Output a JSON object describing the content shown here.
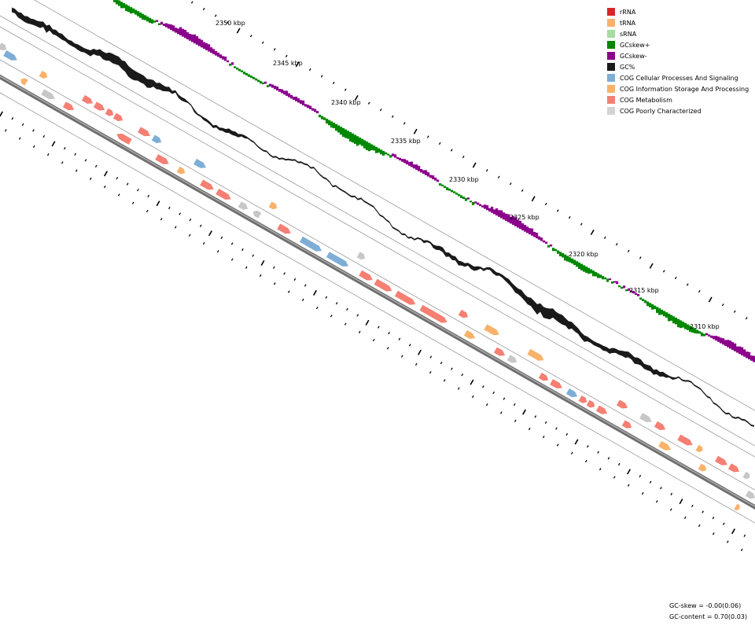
{
  "kbp_labels": [
    "2350 kbp",
    "2345 kbp",
    "2340 kbp",
    "2335 kbp",
    "2330 kbp",
    "2325 kbp",
    "2320 kbp",
    "2315 kbp",
    "2310 kbp"
  ],
  "legend": [
    {
      "label": "rRNA",
      "color": "#d62728"
    },
    {
      "label": "tRNA",
      "color": "#f8b26a"
    },
    {
      "label": "sRNA",
      "color": "#a7dba0"
    },
    {
      "label": "GCskew+",
      "color": "#008800"
    },
    {
      "label": "GCskew-",
      "color": "#8b008b"
    },
    {
      "label": "GC%",
      "color": "#1a1a1a"
    },
    {
      "label": "COG Cellular Processes And Signaling",
      "color": "#7eaed6"
    },
    {
      "label": "COG Information Storage And Processing",
      "color": "#f8b26a"
    },
    {
      "label": "COG Metabolism",
      "color": "#f57f73"
    },
    {
      "label": "COG Poorly Characterized",
      "color": "#d3d3d3"
    }
  ],
  "stats": {
    "gc_skew": "GC-skew = -0.00(0.06)",
    "gc_content": "GC-content = 0.70(0.03)"
  }
}
